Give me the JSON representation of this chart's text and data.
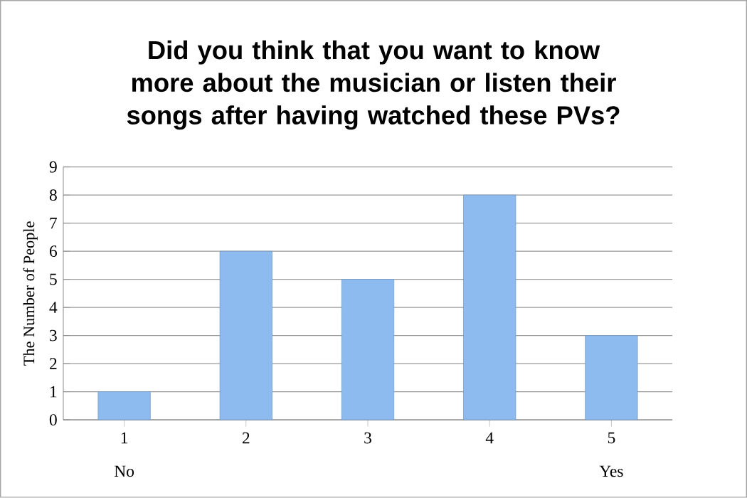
{
  "chart_data": {
    "type": "bar",
    "title": "Did you think that you want to know more about the musician or listen their songs after having watched these PVs?",
    "categories": [
      "1",
      "2",
      "3",
      "4",
      "5"
    ],
    "values": [
      1,
      6,
      5,
      8,
      3
    ],
    "color": "#8dbbf0",
    "ylabel": "The Number of People",
    "ylim": [
      0,
      9
    ],
    "yticks": [
      0,
      1,
      2,
      3,
      4,
      5,
      6,
      7,
      8,
      9
    ],
    "grid": "y",
    "annotations": [
      "No",
      "Yes"
    ]
  }
}
